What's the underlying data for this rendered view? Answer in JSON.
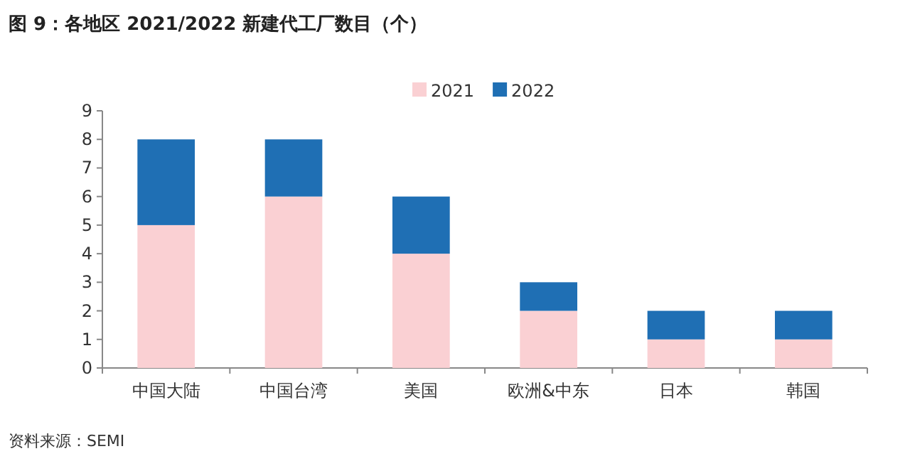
{
  "chart_data": {
    "type": "bar",
    "stacked": true,
    "title": "图 9：各地区 2021/2022 新建代工厂数目（个）",
    "categories": [
      "中国大陆",
      "中国台湾",
      "美国",
      "欧洲&中东",
      "日本",
      "韩国"
    ],
    "series": [
      {
        "name": "2021",
        "color": "#fad0d3",
        "values": [
          5,
          6,
          4,
          2,
          1,
          1
        ]
      },
      {
        "name": "2022",
        "color": "#1f6fb4",
        "values": [
          3,
          2,
          2,
          1,
          1,
          1
        ]
      }
    ],
    "ylim": [
      0,
      9
    ],
    "yticks": [
      0,
      1,
      2,
      3,
      4,
      5,
      6,
      7,
      8,
      9
    ],
    "legend": "top",
    "grid": false,
    "annotations": [
      "资料来源：SEMI"
    ]
  }
}
